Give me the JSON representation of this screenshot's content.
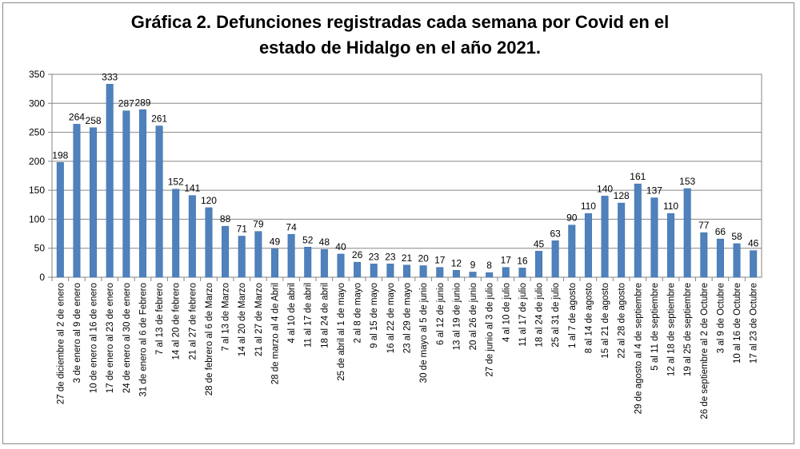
{
  "chart_data": {
    "type": "bar",
    "title_line1": "Gráfica 2. Defunciones registradas cada semana por Covid en el",
    "title_line2": "estado de Hidalgo en el año 2021.",
    "xlabel": "",
    "ylabel": "",
    "ylim": [
      0,
      350
    ],
    "yticks": [
      0,
      50,
      100,
      150,
      200,
      250,
      300,
      350
    ],
    "grid": true,
    "legend": "none",
    "colors": {
      "bar": "#4f81bd",
      "bar_edge": "#3a6ea5",
      "grid": "#868686",
      "axis": "#868686",
      "text": "#000000"
    },
    "categories": [
      "27 de diciembre al 2 de enero",
      "3 de enero al 9 de enero",
      "10 de enero al 16 de enero",
      "17 de enero al 23 de enero",
      "24 de enero al 30 de enero",
      "31 de enero al 6 de Febrero",
      "7 al 13 de febrero",
      "14 al 20 de febrero",
      "21 al 27 de febrero",
      "28 de febrero al 6 de Marzo",
      "7 al 13 de Marzo",
      "14 al 20 de Marzo",
      "21 al 27 de Marzo",
      "28 de marzo al 4 de Abril",
      "4 al 10 de abril",
      "11 al 17 de abril",
      "18 al 24 de abril",
      "25 de abril al 1 de mayo",
      "2 al 8 de mayo",
      "9 al 15 de mayo",
      "16 al 22 de mayo",
      "23 al 29 de mayo",
      "30 de mayo al 5 de junio",
      "6 al 12 de junio",
      "13 al 19 de junio",
      "20 al 26 de junio",
      "27 de junio al 3 de julio",
      "4 al 10 de julio",
      "11 al 17 de julio",
      "18 al 24 de julio",
      "25 al 31 de julio",
      "1 al 7 de agosto",
      "8 al 14 de agosto",
      "15 al 21 de agosto",
      "22 al 28 de agosto",
      "29 de agosto al 4 de septiembre",
      "5 al 11 de septiembre",
      "12 al 18 de septiembre",
      "19 al 25 de septiembre",
      "26 de septiembre al 2 de Octubre",
      "3 al 9 de Octubre",
      "10 al 16 de Octubre",
      "17 al 23 de Octubre"
    ],
    "values": [
      198,
      264,
      258,
      333,
      287,
      289,
      261,
      152,
      141,
      120,
      88,
      71,
      79,
      49,
      74,
      52,
      48,
      40,
      26,
      23,
      23,
      21,
      20,
      17,
      12,
      9,
      8,
      17,
      16,
      45,
      63,
      90,
      110,
      140,
      128,
      161,
      137,
      110,
      153,
      77,
      66,
      58,
      46
    ]
  }
}
